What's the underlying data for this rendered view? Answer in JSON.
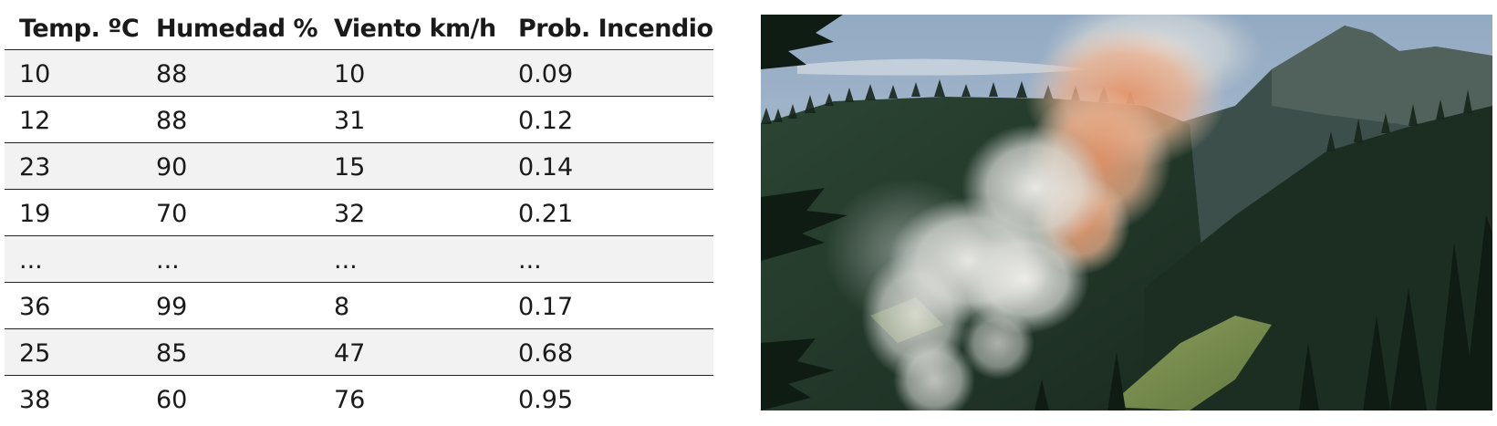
{
  "table": {
    "headers": [
      "Temp. ºC",
      "Humedad %",
      "Viento km/h",
      "Prob. Incendio"
    ],
    "rows": [
      [
        "10",
        "88",
        "10",
        "0.09"
      ],
      [
        "12",
        "88",
        "31",
        "0.12"
      ],
      [
        "23",
        "90",
        "15",
        "0.14"
      ],
      [
        "19",
        "70",
        "32",
        "0.21"
      ],
      [
        "...",
        "...",
        "...",
        "..."
      ],
      [
        "36",
        "99",
        "8",
        "0.17"
      ],
      [
        "25",
        "85",
        "47",
        "0.68"
      ],
      [
        "38",
        "60",
        "76",
        "0.95"
      ]
    ]
  },
  "photo": {
    "subject": "forest-fire-smoke-on-mountainside",
    "colors": {
      "sky": "#a9bfd4",
      "forest_dark": "#1f3326",
      "forest_mid": "#3a5538",
      "smoke_light": "#e9e6e0",
      "smoke_orange": "#e8a27a"
    }
  }
}
